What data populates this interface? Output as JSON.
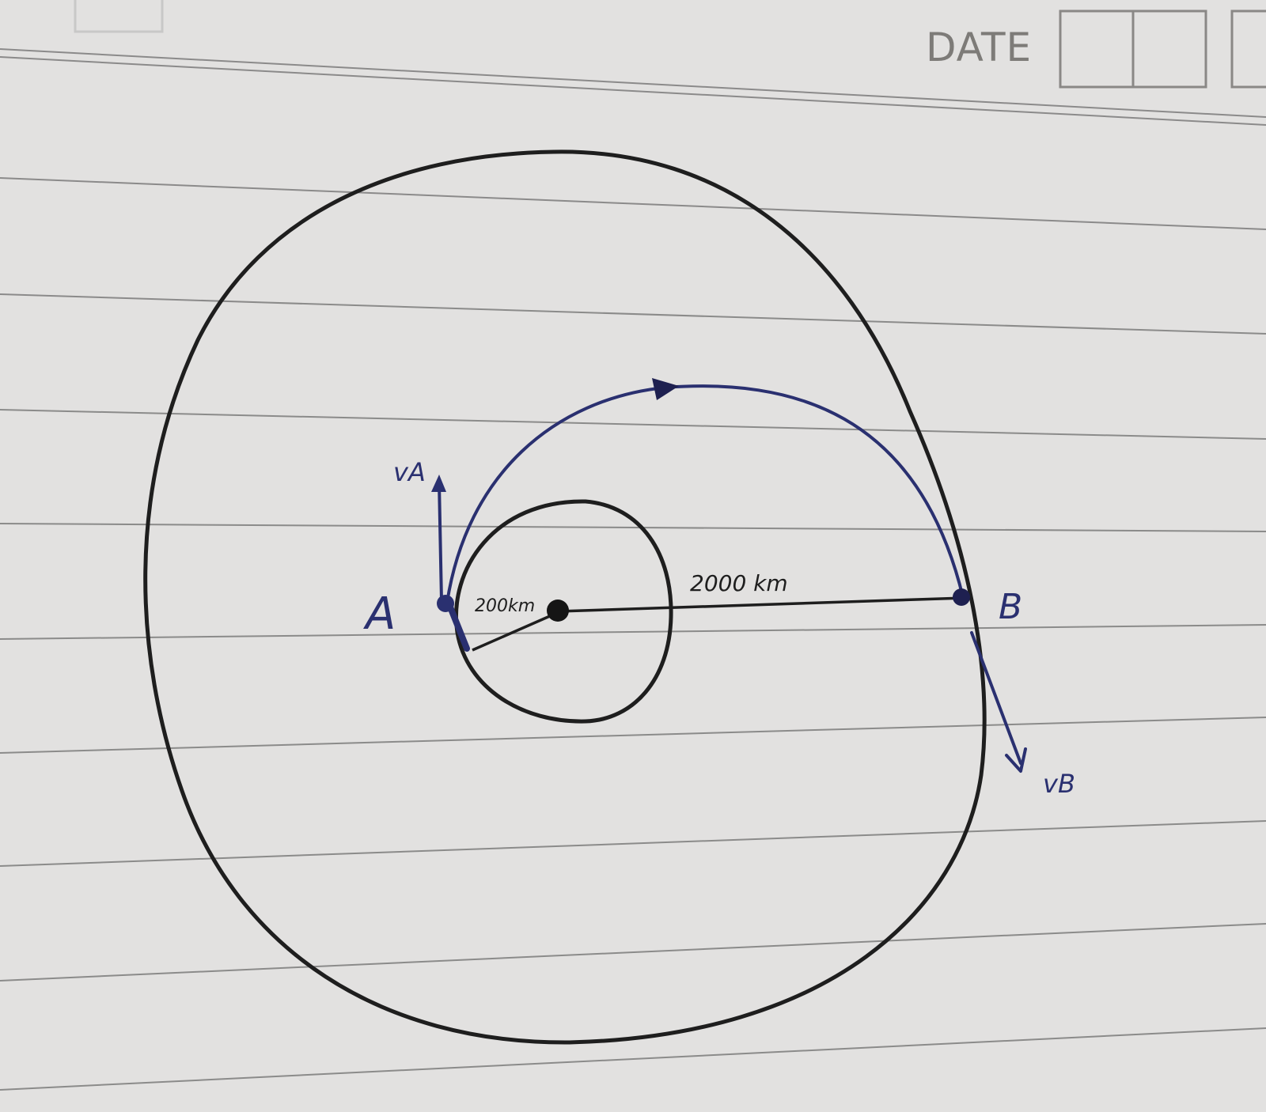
{
  "header": {
    "date_label": "DATE"
  },
  "diagram": {
    "point_a_label": "A",
    "point_b_label": "B",
    "velocity_a_label": "vA",
    "velocity_b_label": "vB",
    "inner_radius_label": "200km",
    "outer_radius_label": "2000 km"
  },
  "colors": {
    "paper": "#e6e5e3",
    "rule_line": "#6e6e6e",
    "ink_black": "#1e1e1e",
    "ink_blue": "#2a3070",
    "printed_text": "#7d7b78"
  }
}
